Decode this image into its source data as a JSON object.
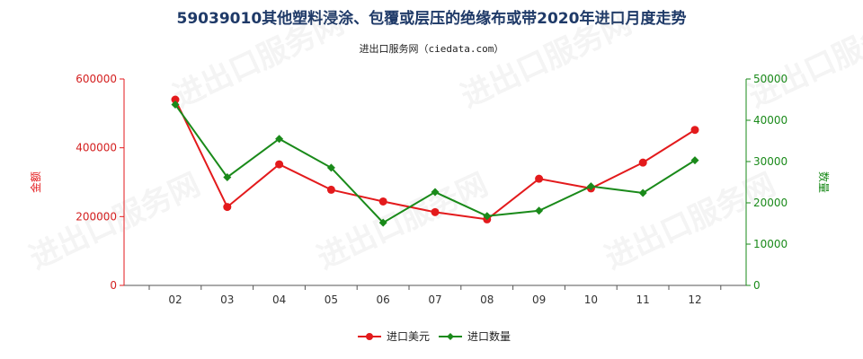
{
  "header": {
    "title": "59039010其他塑料浸涂、包覆或层压的绝缘布或带2020年进口月度走势",
    "subtitle": "进出口服务网（ciedata.com）"
  },
  "chart_data": {
    "type": "line",
    "categories": [
      "02",
      "03",
      "04",
      "05",
      "06",
      "07",
      "08",
      "09",
      "10",
      "11",
      "12"
    ],
    "y_left": {
      "label": "金额",
      "lim": [
        0,
        600000
      ],
      "ticks": [
        "0",
        "200000",
        "400000",
        "600000"
      ],
      "color": "#e31a1c"
    },
    "y_right": {
      "label": "数量",
      "lim": [
        0,
        50000
      ],
      "ticks": [
        "0",
        "10000",
        "20000",
        "30000",
        "40000",
        "50000"
      ],
      "color": "#1a8a1a"
    },
    "series": [
      {
        "name": "进口美元",
        "axis": "left",
        "color": "#e31a1c",
        "values": [
          540000,
          228000,
          352000,
          278000,
          244000,
          213000,
          192000,
          310000,
          282000,
          357000,
          452000
        ]
      },
      {
        "name": "进口数量",
        "axis": "right",
        "color": "#1a8a1a",
        "values": [
          43800,
          26200,
          35500,
          28500,
          15200,
          22600,
          16800,
          18100,
          24000,
          22400,
          30300
        ]
      }
    ],
    "legend_position": "bottom-center",
    "watermark": "进出口服务网"
  }
}
